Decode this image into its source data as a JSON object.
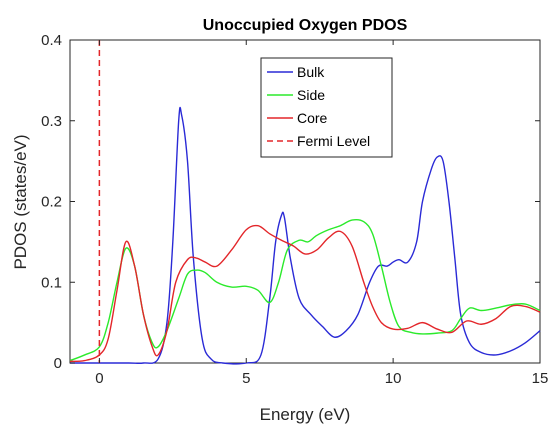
{
  "chart_data": {
    "type": "line",
    "title": "Unoccupied Oxygen PDOS",
    "xlabel": "Energy (eV)",
    "ylabel": "PDOS (states/eV)",
    "xlim": [
      -1,
      15
    ],
    "ylim": [
      0,
      0.4
    ],
    "xticks": [
      0,
      5,
      10,
      15
    ],
    "xtick_labels": [
      "0",
      "5",
      "10",
      "15"
    ],
    "yticks": [
      0,
      0.1,
      0.2,
      0.3,
      0.4
    ],
    "ytick_labels": [
      "0",
      "0.1",
      "0.2",
      "0.3",
      "0.4"
    ],
    "grid": false,
    "legend_position": "top-center",
    "fermi_level": {
      "name": "Fermi Level",
      "x": 0,
      "color": "#e3262a",
      "style": "dashed"
    },
    "series": [
      {
        "name": "Bulk",
        "color": "#2a2ad6",
        "x": [
          -1,
          0,
          1,
          1.5,
          2,
          2.3,
          2.5,
          2.7,
          2.8,
          3.0,
          3.2,
          3.5,
          3.8,
          4.2,
          5,
          5.5,
          5.8,
          6.0,
          6.2,
          6.3,
          6.5,
          6.8,
          7.2,
          7.6,
          8.0,
          8.4,
          8.8,
          9.2,
          9.5,
          9.8,
          10.0,
          10.2,
          10.5,
          10.8,
          11.0,
          11.3,
          11.5,
          11.7,
          11.9,
          12.1,
          12.3,
          12.6,
          13.0,
          13.5,
          14.0,
          14.5,
          15.0
        ],
        "y": [
          0,
          0,
          0,
          0,
          0.005,
          0.05,
          0.15,
          0.3,
          0.307,
          0.25,
          0.13,
          0.03,
          0.005,
          0,
          0,
          0.01,
          0.08,
          0.15,
          0.183,
          0.18,
          0.13,
          0.08,
          0.06,
          0.045,
          0.032,
          0.04,
          0.06,
          0.1,
          0.12,
          0.12,
          0.125,
          0.128,
          0.125,
          0.15,
          0.2,
          0.24,
          0.255,
          0.25,
          0.2,
          0.13,
          0.06,
          0.025,
          0.013,
          0.01,
          0.015,
          0.025,
          0.04
        ]
      },
      {
        "name": "Side",
        "color": "#2bea2b",
        "x": [
          -1,
          -0.5,
          0,
          0.3,
          0.6,
          0.9,
          1.2,
          1.5,
          1.8,
          2.0,
          2.3,
          2.7,
          3.0,
          3.3,
          3.6,
          4.0,
          4.5,
          5.0,
          5.4,
          5.8,
          6.1,
          6.4,
          6.8,
          7.1,
          7.4,
          7.8,
          8.2,
          8.6,
          9.0,
          9.3,
          9.6,
          9.9,
          10.2,
          10.6,
          11.0,
          11.5,
          12.0,
          12.3,
          12.6,
          13.0,
          13.5,
          14.0,
          14.5,
          15.0
        ],
        "y": [
          0.003,
          0.01,
          0.02,
          0.05,
          0.1,
          0.142,
          0.12,
          0.06,
          0.025,
          0.02,
          0.04,
          0.08,
          0.11,
          0.115,
          0.112,
          0.1,
          0.094,
          0.095,
          0.09,
          0.075,
          0.1,
          0.14,
          0.152,
          0.15,
          0.158,
          0.165,
          0.17,
          0.177,
          0.175,
          0.16,
          0.12,
          0.075,
          0.045,
          0.038,
          0.036,
          0.037,
          0.04,
          0.055,
          0.068,
          0.065,
          0.068,
          0.072,
          0.073,
          0.065
        ]
      },
      {
        "name": "Core",
        "color": "#e3262a",
        "x": [
          -1,
          -0.5,
          0,
          0.3,
          0.6,
          0.9,
          1.2,
          1.5,
          1.8,
          2.0,
          2.3,
          2.6,
          3.0,
          3.3,
          3.6,
          4.0,
          4.5,
          5.0,
          5.4,
          5.8,
          6.2,
          6.6,
          7.0,
          7.4,
          7.8,
          8.2,
          8.6,
          9.0,
          9.3,
          9.6,
          10.0,
          10.5,
          11.0,
          11.5,
          12.0,
          12.5,
          13.0,
          13.5,
          14.0,
          14.5,
          15.0
        ],
        "y": [
          0.002,
          0.003,
          0.01,
          0.03,
          0.09,
          0.15,
          0.12,
          0.06,
          0.02,
          0.01,
          0.04,
          0.1,
          0.128,
          0.13,
          0.125,
          0.12,
          0.14,
          0.165,
          0.17,
          0.16,
          0.152,
          0.145,
          0.135,
          0.14,
          0.155,
          0.163,
          0.145,
          0.1,
          0.07,
          0.05,
          0.042,
          0.043,
          0.05,
          0.042,
          0.038,
          0.052,
          0.048,
          0.055,
          0.07,
          0.07,
          0.063
        ]
      }
    ]
  }
}
